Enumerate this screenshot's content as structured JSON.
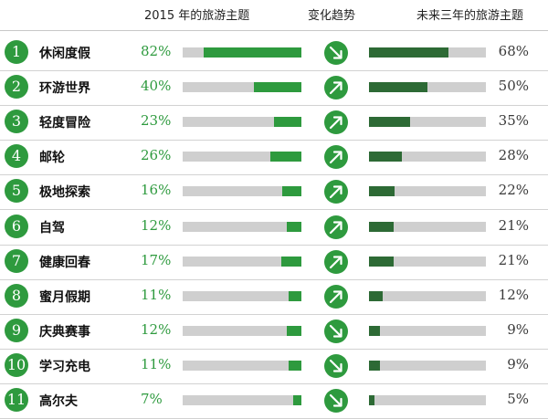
{
  "headers": {
    "left": "2015 年的旅游主题",
    "mid": "变化趋势",
    "right": "未来三年的旅游主题"
  },
  "colors": {
    "current_bar": "#2e9a3e",
    "future_bar": "#2d6a35",
    "track": "#cfcfcf",
    "rank_badge": "#2e9a3e"
  },
  "chart_data": {
    "type": "bar",
    "categories": [
      "休闲度假",
      "环游世界",
      "轻度冒险",
      "邮轮",
      "极地探索",
      "自驾",
      "健康回春",
      "蜜月假期",
      "庆典赛事",
      "学习充电",
      "高尔夫"
    ],
    "series": [
      {
        "name": "2015 年的旅游主题",
        "values": [
          82,
          40,
          23,
          26,
          16,
          12,
          17,
          11,
          12,
          11,
          7
        ],
        "labels": [
          "82%",
          "40%",
          "23%",
          "26%",
          "16%",
          "12%",
          "17%",
          "11%",
          "12%",
          "11%",
          "7%"
        ]
      },
      {
        "name": "未来三年的旅游主题",
        "values": [
          68,
          50,
          35,
          28,
          22,
          21,
          21,
          12,
          9,
          9,
          5
        ],
        "labels": [
          "68%",
          "50%",
          "35%",
          "28%",
          "22%",
          "21%",
          "21%",
          "12%",
          "9%",
          "9%",
          "5%"
        ]
      }
    ],
    "trend": [
      "down",
      "up",
      "up",
      "up",
      "up",
      "up",
      "up",
      "up",
      "down",
      "down",
      "down"
    ],
    "ranks": [
      "1",
      "2",
      "3",
      "4",
      "5",
      "6",
      "7",
      "8",
      "9",
      "10",
      "11"
    ],
    "ylim": [
      0,
      100
    ]
  }
}
